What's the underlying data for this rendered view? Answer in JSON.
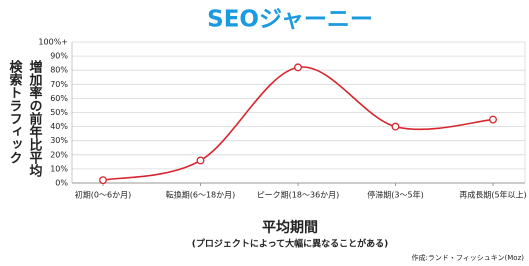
{
  "chart_data": {
    "type": "line",
    "title": "SEOジャーニー",
    "y_label_lines": [
      "検索トラフィック",
      "増加率の前年比平均"
    ],
    "x_label": "平均期間",
    "x_sublabel": "(プロジェクトによって大幅に異なることがある)",
    "source": "作成:ランド・フィッシュキン(Moz)",
    "categories": [
      "初期(0〜6か月)",
      "転換期(6〜18か月)",
      "ピーク期(18〜36か月)",
      "停滞期(3〜5年)",
      "再成長期(5年以上)"
    ],
    "values": [
      2,
      16,
      82,
      40,
      45
    ],
    "color": "#d8262f",
    "ylim": [
      0,
      100
    ],
    "yticks": [
      {
        "value": 0,
        "label": "0%"
      },
      {
        "value": 10,
        "label": "10%"
      },
      {
        "value": 20,
        "label": "20%"
      },
      {
        "value": 30,
        "label": "30%"
      },
      {
        "value": 40,
        "label": "40%"
      },
      {
        "value": 50,
        "label": "50%"
      },
      {
        "value": 60,
        "label": "60%"
      },
      {
        "value": 70,
        "label": "70%"
      },
      {
        "value": 80,
        "label": "80%"
      },
      {
        "value": 90,
        "label": "90%"
      },
      {
        "value": 100,
        "label": "100%+"
      }
    ],
    "grid": true
  }
}
